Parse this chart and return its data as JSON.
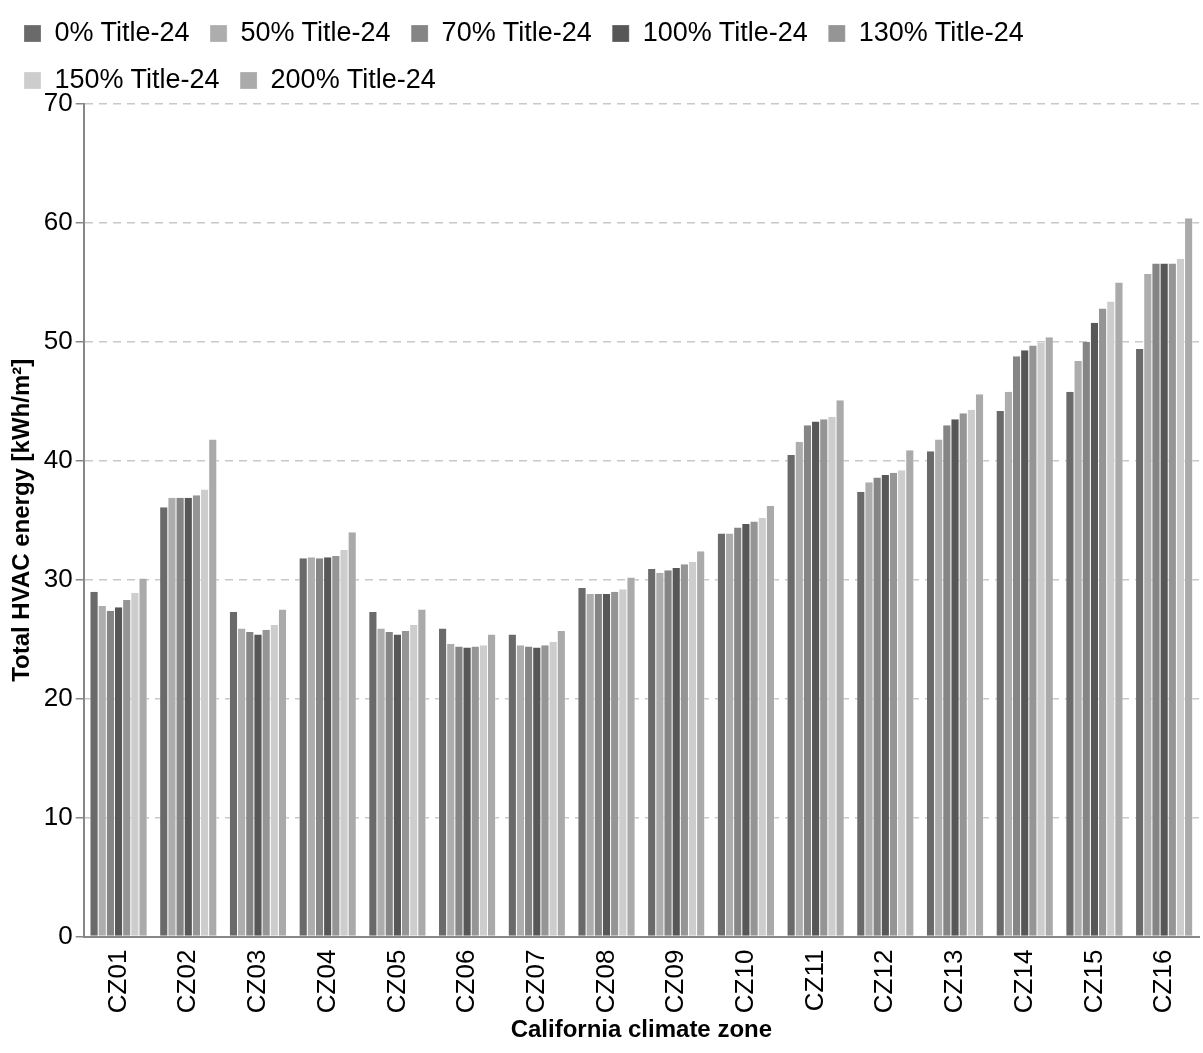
{
  "chart_data": {
    "type": "bar",
    "xlabel": "California climate zone",
    "ylabel": "Total HVAC energy [kWh/m²]",
    "categories": [
      "CZ01",
      "CZ02",
      "CZ03",
      "CZ04",
      "CZ05",
      "CZ06",
      "CZ07",
      "CZ08",
      "CZ09",
      "CZ10",
      "CZ11",
      "CZ12",
      "CZ13",
      "CZ14",
      "CZ15",
      "CZ16"
    ],
    "series": [
      {
        "name": "0% Title-24",
        "color": "#6a6a6a",
        "values": [
          29.0,
          36.1,
          27.3,
          31.8,
          27.3,
          25.9,
          25.4,
          29.3,
          30.9,
          33.9,
          40.5,
          37.4,
          40.8,
          44.2,
          45.8,
          49.4
        ]
      },
      {
        "name": "50% Title-24",
        "color": "#adadad",
        "values": [
          27.8,
          36.9,
          25.9,
          31.9,
          25.9,
          24.6,
          24.5,
          28.8,
          30.6,
          33.9,
          41.6,
          38.2,
          41.8,
          45.8,
          48.4,
          55.7
        ]
      },
      {
        "name": "70% Title-24",
        "color": "#858585",
        "values": [
          27.4,
          36.9,
          25.6,
          31.8,
          25.6,
          24.4,
          24.4,
          28.8,
          30.8,
          34.4,
          43.0,
          38.6,
          43.0,
          48.8,
          50.0,
          56.6
        ]
      },
      {
        "name": "100% Title-24",
        "color": "#575757",
        "values": [
          27.7,
          36.9,
          25.4,
          31.9,
          25.4,
          24.3,
          24.3,
          28.8,
          31.0,
          34.7,
          43.3,
          38.8,
          43.5,
          49.3,
          51.6,
          56.6
        ]
      },
      {
        "name": "130% Title-24",
        "color": "#959595",
        "values": [
          28.3,
          37.1,
          25.8,
          32.0,
          25.7,
          24.4,
          24.5,
          29.0,
          31.3,
          34.9,
          43.5,
          39.0,
          44.0,
          49.7,
          52.8,
          56.6
        ]
      },
      {
        "name": "150% Title-24",
        "color": "#cdcdcd",
        "values": [
          28.9,
          37.6,
          26.2,
          32.5,
          26.2,
          24.5,
          24.8,
          29.2,
          31.5,
          35.2,
          43.7,
          39.2,
          44.3,
          49.9,
          53.4,
          57.0
        ]
      },
      {
        "name": "200% Title-24",
        "color": "#aaaaaa",
        "values": [
          30.1,
          41.8,
          27.5,
          34.0,
          27.5,
          25.4,
          25.7,
          30.2,
          32.4,
          36.2,
          45.1,
          40.9,
          45.6,
          50.4,
          55.0,
          60.4
        ]
      }
    ],
    "ylim": [
      0,
      70
    ],
    "yticks": [
      0,
      10,
      20,
      30,
      40,
      50,
      60,
      70
    ],
    "grid": "y",
    "legend": "top"
  }
}
